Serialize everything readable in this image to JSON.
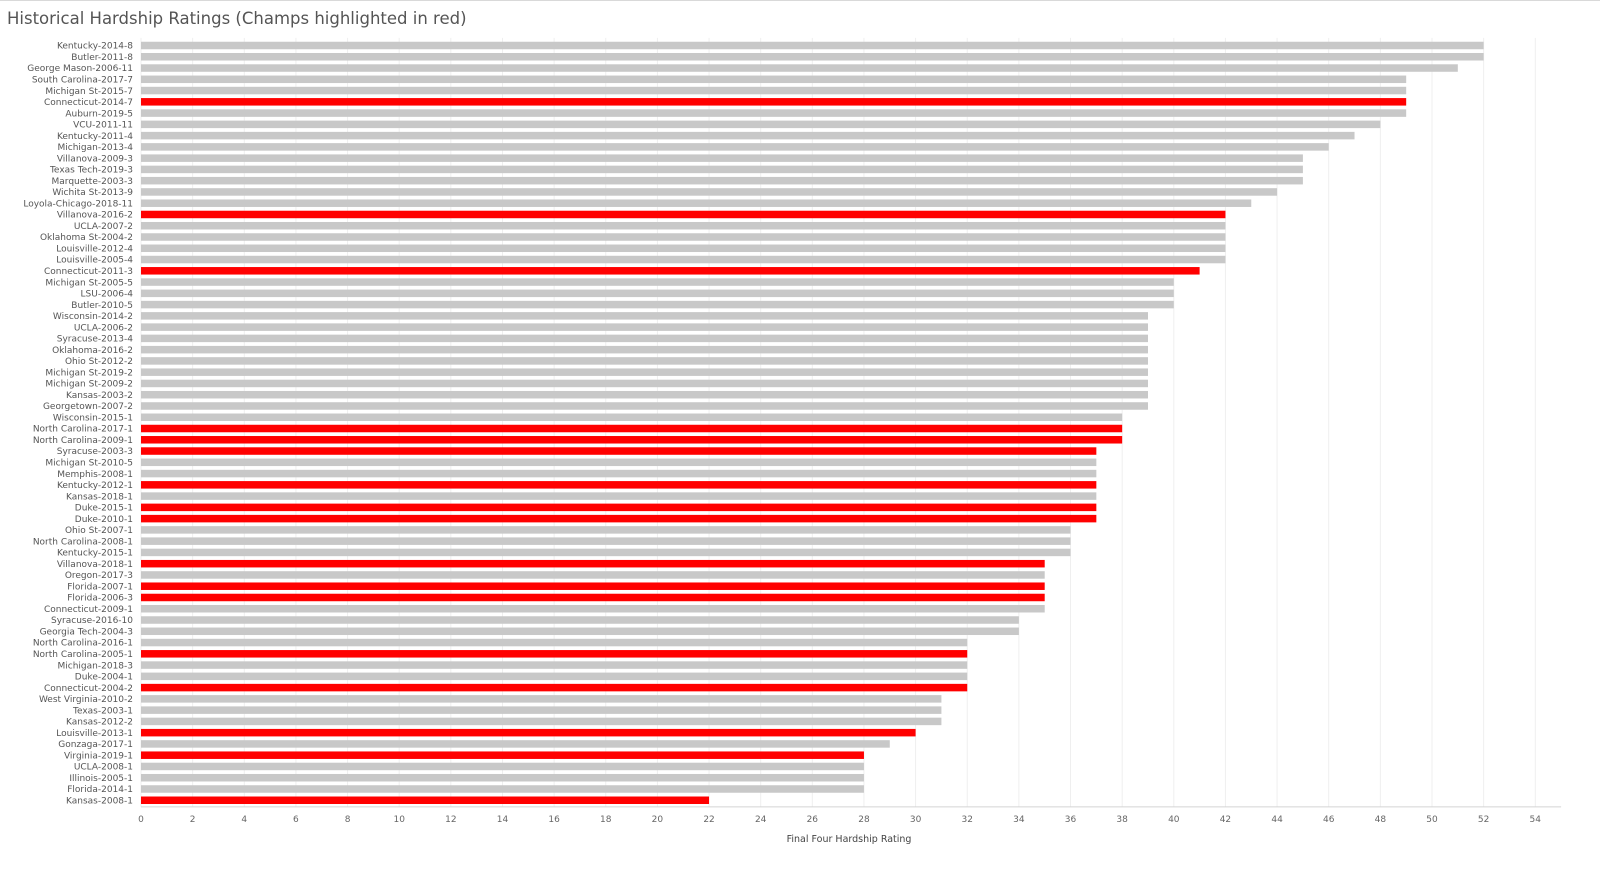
{
  "chart_data": {
    "type": "bar",
    "orientation": "horizontal",
    "title": "Historical Hardship Ratings (Champs highlighted in red)",
    "xlabel": "Final Four Hardship Rating",
    "ylabel": "",
    "xlim": [
      0,
      55
    ],
    "xticks": [
      0,
      2,
      4,
      6,
      8,
      10,
      12,
      14,
      16,
      18,
      20,
      22,
      24,
      26,
      28,
      30,
      32,
      34,
      36,
      38,
      40,
      42,
      44,
      46,
      48,
      50,
      52,
      54
    ],
    "grid": true,
    "colors": {
      "champion": "#ff0000",
      "other": "#c8c8c8"
    },
    "categories": [
      "Kentucky-2014-8",
      "Butler-2011-8",
      "George Mason-2006-11",
      "South Carolina-2017-7",
      "Michigan St-2015-7",
      "Connecticut-2014-7",
      "Auburn-2019-5",
      "VCU-2011-11",
      "Kentucky-2011-4",
      "Michigan-2013-4",
      "Villanova-2009-3",
      "Texas Tech-2019-3",
      "Marquette-2003-3",
      "Wichita St-2013-9",
      "Loyola-Chicago-2018-11",
      "Villanova-2016-2",
      "UCLA-2007-2",
      "Oklahoma St-2004-2",
      "Louisville-2012-4",
      "Louisville-2005-4",
      "Connecticut-2011-3",
      "Michigan St-2005-5",
      "LSU-2006-4",
      "Butler-2010-5",
      "Wisconsin-2014-2",
      "UCLA-2006-2",
      "Syracuse-2013-4",
      "Oklahoma-2016-2",
      "Ohio St-2012-2",
      "Michigan St-2019-2",
      "Michigan St-2009-2",
      "Kansas-2003-2",
      "Georgetown-2007-2",
      "Wisconsin-2015-1",
      "North Carolina-2017-1",
      "North Carolina-2009-1",
      "Syracuse-2003-3",
      "Michigan St-2010-5",
      "Memphis-2008-1",
      "Kentucky-2012-1",
      "Kansas-2018-1",
      "Duke-2015-1",
      "Duke-2010-1",
      "Ohio St-2007-1",
      "North Carolina-2008-1",
      "Kentucky-2015-1",
      "Villanova-2018-1",
      "Oregon-2017-3",
      "Florida-2007-1",
      "Florida-2006-3",
      "Connecticut-2009-1",
      "Syracuse-2016-10",
      "Georgia Tech-2004-3",
      "North Carolina-2016-1",
      "North Carolina-2005-1",
      "Michigan-2018-3",
      "Duke-2004-1",
      "Connecticut-2004-2",
      "West Virginia-2010-2",
      "Texas-2003-1",
      "Kansas-2012-2",
      "Louisville-2013-1",
      "Gonzaga-2017-1",
      "Virginia-2019-1",
      "UCLA-2008-1",
      "Illinois-2005-1",
      "Florida-2014-1",
      "Kansas-2008-1"
    ],
    "values": [
      52,
      52,
      51,
      49,
      49,
      49,
      49,
      48,
      47,
      46,
      45,
      45,
      45,
      44,
      43,
      42,
      42,
      42,
      42,
      42,
      41,
      40,
      40,
      40,
      39,
      39,
      39,
      39,
      39,
      39,
      39,
      39,
      39,
      38,
      38,
      38,
      37,
      37,
      37,
      37,
      37,
      37,
      37,
      36,
      36,
      36,
      35,
      35,
      35,
      35,
      35,
      34,
      34,
      32,
      32,
      32,
      32,
      32,
      31,
      31,
      31,
      30,
      29,
      28,
      28,
      28,
      28,
      22
    ],
    "champion": [
      false,
      false,
      false,
      false,
      false,
      true,
      false,
      false,
      false,
      false,
      false,
      false,
      false,
      false,
      false,
      true,
      false,
      false,
      false,
      false,
      true,
      false,
      false,
      false,
      false,
      false,
      false,
      false,
      false,
      false,
      false,
      false,
      false,
      false,
      true,
      true,
      true,
      false,
      false,
      true,
      false,
      true,
      true,
      false,
      false,
      false,
      true,
      false,
      true,
      true,
      false,
      false,
      false,
      false,
      true,
      false,
      false,
      true,
      false,
      false,
      false,
      true,
      false,
      true,
      false,
      false,
      false,
      true
    ]
  }
}
